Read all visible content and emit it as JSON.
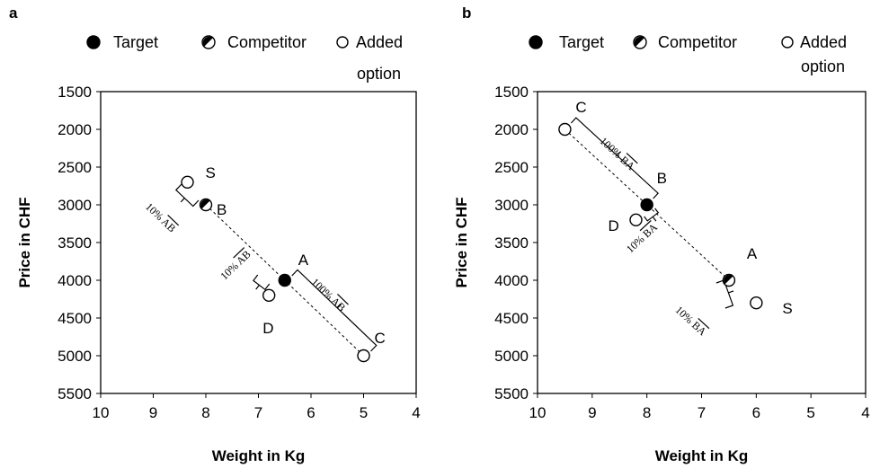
{
  "chart_data": [
    {
      "panel": "a",
      "type": "scatter",
      "xlabel": "Weight in Kg",
      "ylabel": "Price in CHF",
      "xlim": [
        10,
        4
      ],
      "ylim": [
        1500,
        5500
      ],
      "x_reversed": true,
      "y_reversed": true,
      "x_ticks": [
        10,
        9,
        8,
        7,
        6,
        5,
        4
      ],
      "y_ticks": [
        1500,
        2000,
        2500,
        3000,
        3500,
        4000,
        4500,
        5000,
        5500
      ],
      "legend": [
        {
          "label": "Target",
          "marker": "filled-circle"
        },
        {
          "label": "Competitor",
          "marker": "half-circle"
        },
        {
          "label": "Added",
          "marker": "open-circle"
        },
        {
          "label": "option",
          "marker": "none"
        }
      ],
      "points": [
        {
          "label": "A",
          "x": 6.5,
          "y": 4000,
          "role": "target"
        },
        {
          "label": "B",
          "x": 8.0,
          "y": 3000,
          "role": "competitor"
        },
        {
          "label": "C",
          "x": 5.0,
          "y": 5000,
          "role": "added"
        },
        {
          "label": "D",
          "x": 6.8,
          "y": 4200,
          "role": "added"
        },
        {
          "label": "S",
          "x": 8.35,
          "y": 2700,
          "role": "added"
        }
      ],
      "annotations": [
        "100% AB",
        "10% AB",
        "10% AB"
      ]
    },
    {
      "panel": "b",
      "type": "scatter",
      "xlabel": "Weight in Kg",
      "ylabel": "Price in CHF",
      "xlim": [
        10,
        4
      ],
      "ylim": [
        1500,
        5500
      ],
      "x_reversed": true,
      "y_reversed": true,
      "x_ticks": [
        10,
        9,
        8,
        7,
        6,
        5,
        4
      ],
      "y_ticks": [
        1500,
        2000,
        2500,
        3000,
        3500,
        4000,
        4500,
        5000,
        5500
      ],
      "legend": [
        {
          "label": "Target",
          "marker": "filled-circle"
        },
        {
          "label": "Competitor",
          "marker": "half-circle"
        },
        {
          "label": "Added",
          "marker": "open-circle"
        },
        {
          "label": "option",
          "marker": "none"
        }
      ],
      "points": [
        {
          "label": "A",
          "x": 6.5,
          "y": 4000,
          "role": "competitor"
        },
        {
          "label": "B",
          "x": 8.0,
          "y": 3000,
          "role": "target"
        },
        {
          "label": "C",
          "x": 9.5,
          "y": 2000,
          "role": "added"
        },
        {
          "label": "D",
          "x": 8.2,
          "y": 3200,
          "role": "added"
        },
        {
          "label": "S",
          "x": 6.0,
          "y": 4300,
          "role": "added"
        }
      ],
      "annotations": [
        "100% BA",
        "10% BA",
        "10% BA"
      ]
    }
  ]
}
